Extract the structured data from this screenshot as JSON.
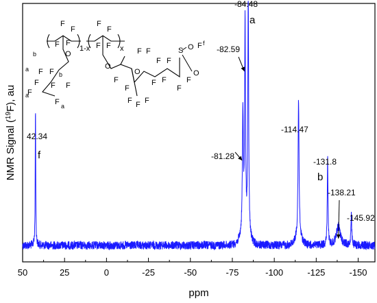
{
  "chart_data": {
    "type": "line",
    "xlabel": "ppm",
    "ylabel": "NMR Signal (19F), au",
    "xlim": [
      50,
      -160
    ],
    "xticks": [
      "50",
      "25",
      "0",
      "-25",
      "-50",
      "-75",
      "-100",
      "-125",
      "-150"
    ],
    "xtick_values": [
      50,
      25,
      0,
      -25,
      -50,
      -75,
      -100,
      -125,
      -150
    ],
    "series_color": "#1a1aff",
    "peaks": [
      {
        "ppm": 42.34,
        "height": 0.58,
        "label": "42.34"
      },
      {
        "ppm": -81.28,
        "height": 0.5,
        "label": "-81.28"
      },
      {
        "ppm": -82.59,
        "height": 0.87,
        "label": "-82.59"
      },
      {
        "ppm": -84.48,
        "height": 1.0,
        "label": "-84.48"
      },
      {
        "ppm": -114.47,
        "height": 0.57,
        "label": "-114.47"
      },
      {
        "ppm": -131.8,
        "height": 0.37,
        "label": "-131.8"
      },
      {
        "ppm": -138.21,
        "height": 0.08,
        "label": "-138.21"
      },
      {
        "ppm": -145.92,
        "height": 0.12,
        "label": "-145.92"
      }
    ],
    "peak_assignments": [
      {
        "ppm": 42.34,
        "letter": "f"
      },
      {
        "ppm": -84.48,
        "letter": "a"
      },
      {
        "ppm": -131.8,
        "letter": "b"
      }
    ]
  },
  "structure": {
    "atom_F": "F",
    "atom_O": "O",
    "atom_S": "S",
    "sub_1x": "1-x",
    "sub_x": "x",
    "site_a": "a",
    "site_b": "b",
    "site_f": "f"
  }
}
